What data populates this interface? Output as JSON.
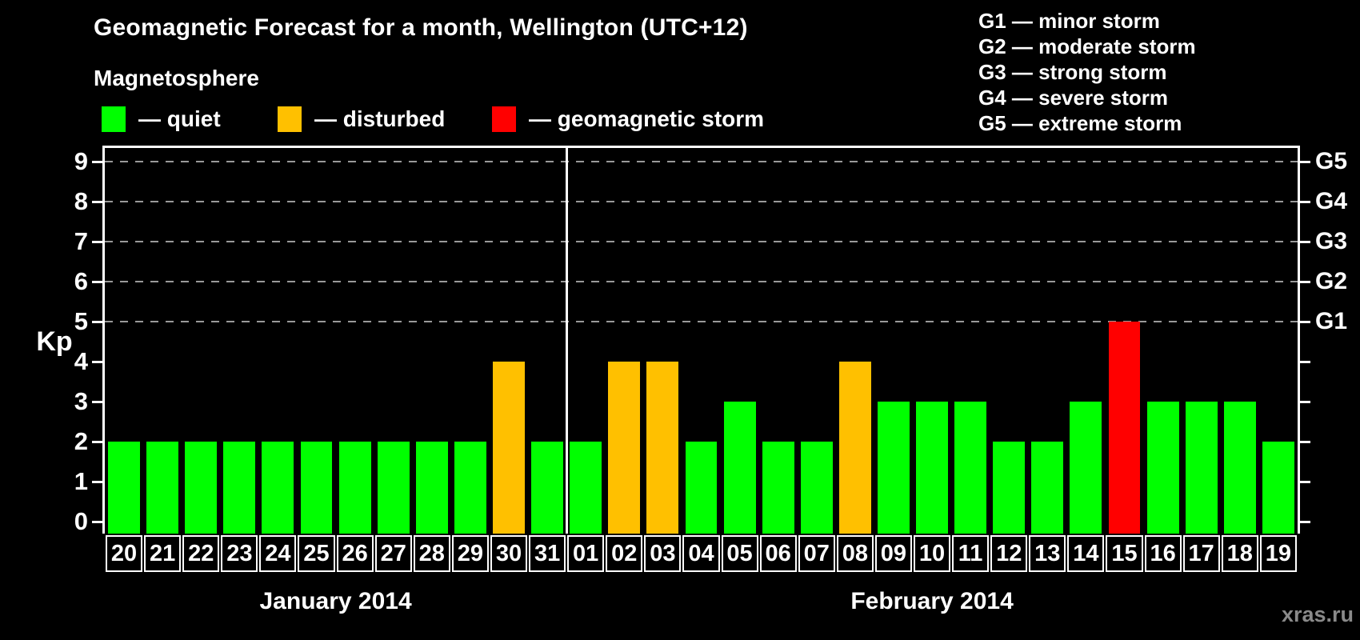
{
  "title": "Geomagnetic Forecast for a month, Wellington (UTC+12)",
  "subtitle": "Magnetosphere",
  "watermark": "xras.ru",
  "colors": {
    "quiet": "#00ff00",
    "disturbed": "#ffc000",
    "storm": "#ff0000",
    "grid": "#9a9a9a",
    "axis": "#ffffff",
    "watermark": "#8a8a8a"
  },
  "legend": {
    "items": [
      {
        "status": "quiet",
        "label": "— quiet"
      },
      {
        "status": "disturbed",
        "label": "— disturbed"
      },
      {
        "status": "storm",
        "label": "— geomagnetic storm"
      }
    ]
  },
  "g_legend": [
    "G1 — minor storm",
    "G2 — moderate storm",
    "G3 — strong storm",
    "G4 — severe storm",
    "G5 — extreme storm"
  ],
  "chart_data": {
    "type": "bar",
    "title": "Geomagnetic Forecast for a month, Wellington (UTC+12)",
    "xlabel": "",
    "ylabel": "Kp",
    "ylim": [
      0,
      9
    ],
    "y_ticks": [
      0,
      1,
      2,
      3,
      4,
      5,
      6,
      7,
      8,
      9
    ],
    "grid": "dashed horizontal lines at Kp 5-9 only",
    "gridlines_at": [
      5,
      6,
      7,
      8,
      9
    ],
    "right_axis_labels": [
      {
        "value": 5,
        "label": "G1"
      },
      {
        "value": 6,
        "label": "G2"
      },
      {
        "value": 7,
        "label": "G3"
      },
      {
        "value": 8,
        "label": "G4"
      },
      {
        "value": 9,
        "label": "G5"
      }
    ],
    "categories": [
      "20",
      "21",
      "22",
      "23",
      "24",
      "25",
      "26",
      "27",
      "28",
      "29",
      "30",
      "31",
      "01",
      "02",
      "03",
      "04",
      "05",
      "06",
      "07",
      "08",
      "09",
      "10",
      "11",
      "12",
      "13",
      "14",
      "15",
      "16",
      "17",
      "18",
      "19"
    ],
    "values": [
      2,
      2,
      2,
      2,
      2,
      2,
      2,
      2,
      2,
      2,
      4,
      2,
      2,
      4,
      4,
      2,
      3,
      2,
      2,
      4,
      3,
      3,
      3,
      2,
      2,
      3,
      5,
      3,
      3,
      3,
      2
    ],
    "statuses": [
      "quiet",
      "quiet",
      "quiet",
      "quiet",
      "quiet",
      "quiet",
      "quiet",
      "quiet",
      "quiet",
      "quiet",
      "disturbed",
      "quiet",
      "quiet",
      "disturbed",
      "disturbed",
      "quiet",
      "quiet",
      "quiet",
      "quiet",
      "disturbed",
      "quiet",
      "quiet",
      "quiet",
      "quiet",
      "quiet",
      "quiet",
      "storm",
      "quiet",
      "quiet",
      "quiet",
      "quiet"
    ],
    "months": [
      {
        "label": "January 2014",
        "days": 12
      },
      {
        "label": "February 2014",
        "days": 19
      }
    ]
  }
}
